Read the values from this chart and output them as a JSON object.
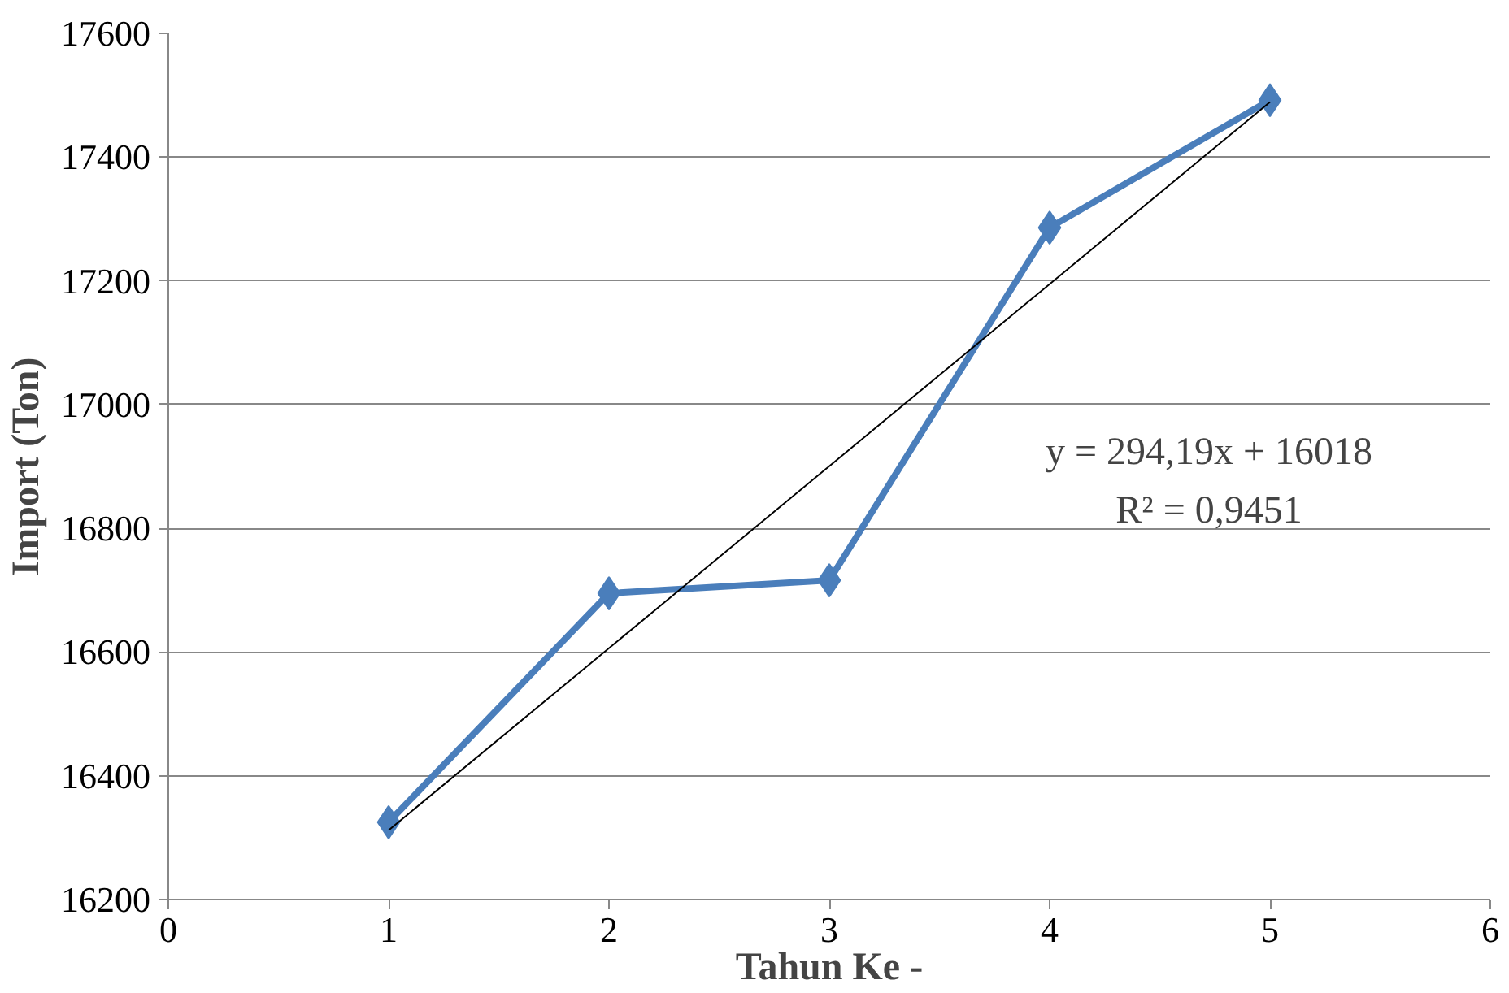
{
  "chart_data": {
    "type": "line",
    "xlabel": "Tahun Ke -",
    "ylabel": "Import (Ton)",
    "x": [
      1,
      2,
      3,
      4,
      5
    ],
    "series": [
      {
        "color": "#4a7ebb",
        "marker": "diamond",
        "values": [
          16325,
          16695,
          16716,
          17286,
          17492
        ]
      },
      {
        "color": "#000000",
        "marker": "none",
        "x": [
          1,
          5
        ],
        "values": [
          16312,
          17489
        ]
      }
    ],
    "annotations": [
      "y = 294,19x + 16018",
      "R² = 0,9451"
    ],
    "xlim": [
      0,
      6
    ],
    "xticks": [
      0,
      1,
      2,
      3,
      4,
      5,
      6
    ],
    "ylim": [
      16200,
      17600
    ],
    "yticks": [
      16200,
      16400,
      16600,
      16800,
      17000,
      17200,
      17400,
      17600
    ],
    "grid": "y"
  }
}
